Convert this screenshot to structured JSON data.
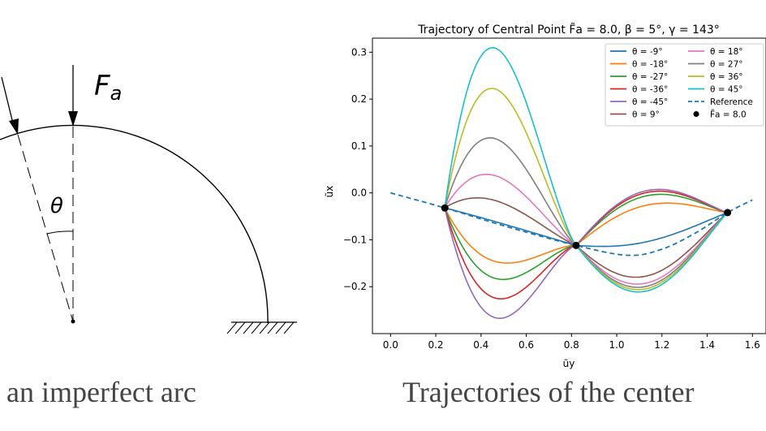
{
  "left_figure": {
    "force_label": "F",
    "force_subscript": "a",
    "angle_label": "θ",
    "caption": "an imperfect arc"
  },
  "right_caption": "Trajectories of the center",
  "chart_data": {
    "type": "line",
    "title": "Trajectory of Central Point F̃a = 8.0, β = 5°, γ = 143°",
    "xlabel": "ũy",
    "ylabel": "ũx",
    "xlim": [
      -0.08,
      1.66
    ],
    "ylim": [
      -0.3,
      0.33
    ],
    "xticks": [
      0.0,
      0.2,
      0.4,
      0.6,
      0.8,
      1.0,
      1.2,
      1.4,
      1.6
    ],
    "yticks": [
      0.3,
      0.2,
      0.1,
      0.0,
      -0.1,
      -0.2
    ],
    "xtick_labels": [
      "0.0",
      "0.2",
      "0.4",
      "0.6",
      "0.8",
      "1.0",
      "1.2",
      "1.4",
      "1.6"
    ],
    "ytick_labels": [
      "0.3",
      "0.2",
      "0.1",
      "0.0",
      "−0.1",
      "−0.2"
    ],
    "grid": false,
    "legend_position": "top-right",
    "legend_columns": 2,
    "key_points": [
      [
        0.24,
        -0.032
      ],
      [
        0.82,
        -0.112
      ],
      [
        1.49,
        -0.042
      ]
    ],
    "series": [
      {
        "name": "θ = -9°",
        "color": "#1f77b4",
        "loop1_extreme": -0.065,
        "loop2_extreme": -0.095
      },
      {
        "name": "θ = -18°",
        "color": "#ff7f0e",
        "loop1_extreme": -0.15,
        "loop2_extreme": -0.017
      },
      {
        "name": "θ = -27°",
        "color": "#2ca02c",
        "loop1_extreme": -0.186,
        "loop2_extreme": 0.003
      },
      {
        "name": "θ = -36°",
        "color": "#d62728",
        "loop1_extreme": -0.228,
        "loop2_extreme": 0.01
      },
      {
        "name": "θ = -45°",
        "color": "#9467bd",
        "loop1_extreme": -0.27,
        "loop2_extreme": 0.014
      },
      {
        "name": "θ = 9°",
        "color": "#8c564b",
        "loop1_extreme": -0.02,
        "loop2_extreme": -0.168
      },
      {
        "name": "θ = 18°",
        "color": "#e377c2",
        "loop1_extreme": 0.033,
        "loop2_extreme": -0.183
      },
      {
        "name": "θ = 27°",
        "color": "#7f7f7f",
        "loop1_extreme": 0.112,
        "loop2_extreme": -0.19
      },
      {
        "name": "θ = 36°",
        "color": "#bcbd22",
        "loop1_extreme": 0.218,
        "loop2_extreme": -0.195
      },
      {
        "name": "θ = 45°",
        "color": "#17becf",
        "loop1_extreme": 0.305,
        "loop2_extreme": -0.2
      }
    ],
    "reference": {
      "name": "Reference",
      "color": "#1f77b4",
      "dash": true,
      "x": [
        0.0,
        0.24,
        0.5,
        0.82,
        1.05,
        1.2,
        1.35,
        1.49,
        1.6
      ],
      "y": [
        0.0,
        -0.032,
        -0.07,
        -0.112,
        -0.133,
        -0.12,
        -0.085,
        -0.042,
        -0.015
      ]
    },
    "marker_legend": {
      "name": "F̃a = 8.0",
      "color": "#000000"
    }
  }
}
